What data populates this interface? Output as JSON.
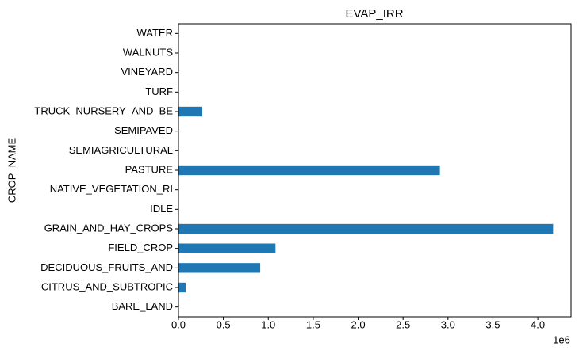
{
  "chart_data": {
    "type": "barh",
    "title": "EVAP_IRR",
    "ylabel": "CROP_NAME",
    "offset_label": "1e6",
    "categories": [
      "BARE_LAND",
      "CITRUS_AND_SUBTROPIC",
      "DECIDUOUS_FRUITS_AND",
      "FIELD_CROP",
      "GRAIN_AND_HAY_CROPS",
      "IDLE",
      "NATIVE_VEGETATION_RI",
      "PASTURE",
      "SEMIAGRICULTURAL",
      "SEMIPAVED",
      "TRUCK_NURSERY_AND_BE",
      "TURF",
      "VINEYARD",
      "WALNUTS",
      "WATER"
    ],
    "values": [
      0,
      80000,
      910000,
      1080000,
      4170000,
      0,
      0,
      2910000,
      0,
      0,
      265000,
      0,
      0,
      0,
      0
    ],
    "color": "#1f77b4",
    "xlim": [
      0,
      4370000
    ],
    "xticks": [
      {
        "value": 0,
        "label": "0.0"
      },
      {
        "value": 500000,
        "label": "0.5"
      },
      {
        "value": 1000000,
        "label": "1.0"
      },
      {
        "value": 1500000,
        "label": "1.5"
      },
      {
        "value": 2000000,
        "label": "2.0"
      },
      {
        "value": 2500000,
        "label": "2.5"
      },
      {
        "value": 3000000,
        "label": "3.0"
      },
      {
        "value": 3500000,
        "label": "3.5"
      },
      {
        "value": 4000000,
        "label": "4.0"
      }
    ],
    "grid": false
  }
}
